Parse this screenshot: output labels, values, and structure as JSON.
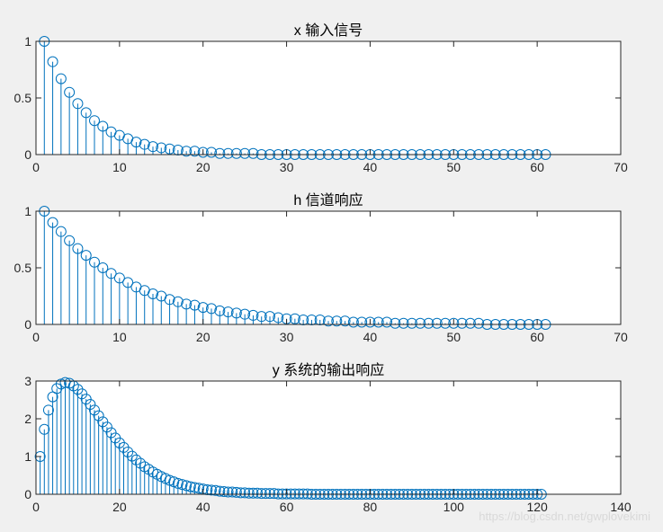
{
  "figure": {
    "background": "#f0f0f0",
    "axes_background": "#ffffff",
    "stem_color": "#0072bd",
    "axis_color": "#262626"
  },
  "watermark": "https://blog.csdn.net/gwplovekimi",
  "chart_data": [
    {
      "type": "stem",
      "title": "x 输入信号",
      "xlim": [
        0,
        70
      ],
      "ylim": [
        0,
        1
      ],
      "xticks": [
        0,
        10,
        20,
        30,
        40,
        50,
        60,
        70
      ],
      "yticks": [
        0,
        0.5,
        1
      ],
      "ytick_labels": [
        "0",
        "0.5",
        "1"
      ],
      "marker": "open-circle",
      "x": [
        1,
        2,
        3,
        4,
        5,
        6,
        7,
        8,
        9,
        10,
        11,
        12,
        13,
        14,
        15,
        16,
        17,
        18,
        19,
        20,
        21,
        22,
        23,
        24,
        25,
        26,
        27,
        28,
        29,
        30,
        31,
        32,
        33,
        34,
        35,
        36,
        37,
        38,
        39,
        40,
        41,
        42,
        43,
        44,
        45,
        46,
        47,
        48,
        49,
        50,
        51,
        52,
        53,
        54,
        55,
        56,
        57,
        58,
        59,
        60,
        61
      ],
      "values": [
        1.0,
        0.82,
        0.67,
        0.55,
        0.45,
        0.37,
        0.3,
        0.25,
        0.2,
        0.17,
        0.14,
        0.11,
        0.09,
        0.07,
        0.06,
        0.05,
        0.04,
        0.03,
        0.03,
        0.02,
        0.02,
        0.01,
        0.01,
        0.01,
        0.01,
        0.01,
        0.0,
        0.0,
        0.0,
        0.0,
        0.0,
        0.0,
        0.0,
        0.0,
        0.0,
        0.0,
        0.0,
        0.0,
        0.0,
        0.0,
        0.0,
        0.0,
        0.0,
        0.0,
        0.0,
        0.0,
        0.0,
        0.0,
        0.0,
        0.0,
        0.0,
        0.0,
        0.0,
        0.0,
        0.0,
        0.0,
        0.0,
        0.0,
        0.0,
        0.0,
        0.0
      ]
    },
    {
      "type": "stem",
      "title": "h 信道响应",
      "xlim": [
        0,
        70
      ],
      "ylim": [
        0,
        1
      ],
      "xticks": [
        0,
        10,
        20,
        30,
        40,
        50,
        60,
        70
      ],
      "yticks": [
        0,
        0.5,
        1
      ],
      "ytick_labels": [
        "0",
        "0.5",
        "1"
      ],
      "marker": "open-circle",
      "x": [
        1,
        2,
        3,
        4,
        5,
        6,
        7,
        8,
        9,
        10,
        11,
        12,
        13,
        14,
        15,
        16,
        17,
        18,
        19,
        20,
        21,
        22,
        23,
        24,
        25,
        26,
        27,
        28,
        29,
        30,
        31,
        32,
        33,
        34,
        35,
        36,
        37,
        38,
        39,
        40,
        41,
        42,
        43,
        44,
        45,
        46,
        47,
        48,
        49,
        50,
        51,
        52,
        53,
        54,
        55,
        56,
        57,
        58,
        59,
        60,
        61
      ],
      "values": [
        1.0,
        0.9,
        0.82,
        0.74,
        0.67,
        0.61,
        0.55,
        0.5,
        0.45,
        0.41,
        0.37,
        0.33,
        0.3,
        0.27,
        0.25,
        0.22,
        0.2,
        0.18,
        0.17,
        0.15,
        0.14,
        0.12,
        0.11,
        0.1,
        0.09,
        0.08,
        0.07,
        0.07,
        0.06,
        0.05,
        0.05,
        0.04,
        0.04,
        0.04,
        0.03,
        0.03,
        0.03,
        0.02,
        0.02,
        0.02,
        0.02,
        0.02,
        0.01,
        0.01,
        0.01,
        0.01,
        0.01,
        0.01,
        0.01,
        0.01,
        0.01,
        0.01,
        0.01,
        0.0,
        0.0,
        0.0,
        0.0,
        0.0,
        0.0,
        0.0,
        0.0
      ]
    },
    {
      "type": "stem",
      "title": "y 系统的输出响应",
      "xlim": [
        0,
        140
      ],
      "ylim": [
        0,
        3
      ],
      "xticks": [
        0,
        20,
        40,
        60,
        80,
        100,
        120,
        140
      ],
      "yticks": [
        0,
        1,
        2,
        3
      ],
      "ytick_labels": [
        "0",
        "1",
        "2",
        "3"
      ],
      "marker": "open-circle",
      "x": [
        1,
        2,
        3,
        4,
        5,
        6,
        7,
        8,
        9,
        10,
        11,
        12,
        13,
        14,
        15,
        16,
        17,
        18,
        19,
        20,
        21,
        22,
        23,
        24,
        25,
        26,
        27,
        28,
        29,
        30,
        31,
        32,
        33,
        34,
        35,
        36,
        37,
        38,
        39,
        40,
        41,
        42,
        43,
        44,
        45,
        46,
        47,
        48,
        49,
        50,
        51,
        52,
        53,
        54,
        55,
        56,
        57,
        58,
        59,
        60,
        61,
        62,
        63,
        64,
        65,
        66,
        67,
        68,
        69,
        70,
        71,
        72,
        73,
        74,
        75,
        76,
        77,
        78,
        79,
        80,
        81,
        82,
        83,
        84,
        85,
        86,
        87,
        88,
        89,
        90,
        91,
        92,
        93,
        94,
        95,
        96,
        97,
        98,
        99,
        100,
        101,
        102,
        103,
        104,
        105,
        106,
        107,
        108,
        109,
        110,
        111,
        112,
        113,
        114,
        115,
        116,
        117,
        118,
        119,
        120,
        121
      ],
      "values": [
        1.0,
        1.72,
        2.23,
        2.58,
        2.8,
        2.92,
        2.96,
        2.94,
        2.87,
        2.78,
        2.66,
        2.52,
        2.38,
        2.23,
        2.08,
        1.92,
        1.78,
        1.63,
        1.49,
        1.36,
        1.24,
        1.12,
        1.01,
        0.91,
        0.82,
        0.73,
        0.66,
        0.59,
        0.53,
        0.47,
        0.42,
        0.37,
        0.33,
        0.29,
        0.26,
        0.23,
        0.2,
        0.18,
        0.16,
        0.14,
        0.12,
        0.11,
        0.1,
        0.08,
        0.07,
        0.06,
        0.06,
        0.05,
        0.04,
        0.04,
        0.03,
        0.03,
        0.03,
        0.02,
        0.02,
        0.02,
        0.02,
        0.01,
        0.01,
        0.01,
        0.01,
        0.01,
        0.01,
        0.01,
        0.01,
        0.0,
        0.0,
        0.0,
        0.0,
        0.0,
        0.0,
        0.0,
        0.0,
        0.0,
        0.0,
        0.0,
        0.0,
        0.0,
        0.0,
        0.0,
        0.0,
        0.0,
        0.0,
        0.0,
        0.0,
        0.0,
        0.0,
        0.0,
        0.0,
        0.0,
        0.0,
        0.0,
        0.0,
        0.0,
        0.0,
        0.0,
        0.0,
        0.0,
        0.0,
        0.0,
        0.0,
        0.0,
        0.0,
        0.0,
        0.0,
        0.0,
        0.0,
        0.0,
        0.0,
        0.0,
        0.0,
        0.0,
        0.0,
        0.0,
        0.0,
        0.0,
        0.0,
        0.0,
        0.0,
        0.0,
        0.0
      ]
    }
  ]
}
